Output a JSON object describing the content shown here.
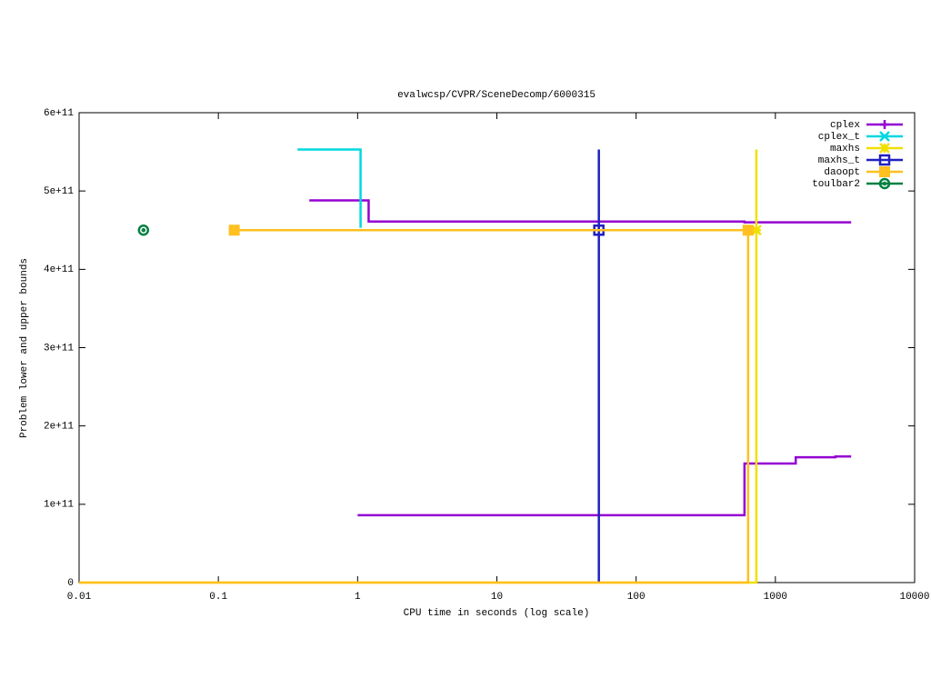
{
  "chart_data": {
    "type": "line",
    "title": "evalwcsp/CVPR/SceneDecomp/6000315",
    "x_label": "CPU time in seconds (log scale)",
    "y_label": "Problem lower and upper bounds",
    "xscale": "log",
    "xlim": [
      0.01,
      10000
    ],
    "xticks": [
      0.01,
      0.1,
      1,
      10,
      100,
      1000,
      10000
    ],
    "ylim": [
      0,
      600000000000
    ],
    "yticks": [
      0,
      {
        "value": 100000000000,
        "label": "1e+11"
      },
      {
        "value": 200000000000,
        "label": "2e+11"
      },
      {
        "value": 300000000000,
        "label": "3e+11"
      },
      {
        "value": 400000000000,
        "label": "4e+11"
      },
      {
        "value": 500000000000,
        "label": "5e+11"
      },
      {
        "value": 600000000000,
        "label": "6e+11"
      }
    ],
    "legend": "top-right",
    "series": [
      {
        "name": "cplex",
        "color": "#9400d3",
        "marker": "plus",
        "x": [
          0.45,
          1.2,
          1.2,
          600,
          600,
          3500,
          null,
          1,
          600,
          600,
          1400,
          1400,
          2700,
          2700,
          3500
        ],
        "values": [
          488000000000,
          488000000000,
          461000000000,
          461000000000,
          460000000000,
          460000000000,
          null,
          86000000000,
          86000000000,
          152000000000,
          152000000000,
          160000000000,
          160000000000,
          161000000000,
          161000000000
        ],
        "point_x": [],
        "point_values": []
      },
      {
        "name": "cplex_t",
        "color": "#00d8e0",
        "marker": "cross",
        "x": [
          0.37,
          1.05,
          1.05
        ],
        "values": [
          553000000000,
          553000000000,
          453000000000
        ],
        "point_x": [],
        "point_values": []
      },
      {
        "name": "maxhs",
        "color": "#f0e000",
        "marker": "star",
        "x": [
          0.01,
          730,
          730
        ],
        "values": [
          0,
          0,
          553000000000
        ],
        "point_x": [
          730
        ],
        "point_values": [
          450000000000
        ]
      },
      {
        "name": "maxhs_t",
        "color": "#2020c0",
        "marker": "square-open",
        "x": [
          54,
          54
        ],
        "values": [
          0,
          553000000000
        ],
        "point_x": [
          54
        ],
        "point_values": [
          450000000000
        ]
      },
      {
        "name": "daoopt",
        "color": "#ffc020",
        "marker": "square",
        "x": [
          0.13,
          637,
          637,
          0.01
        ],
        "values": [
          450000000000,
          450000000000,
          0,
          0
        ],
        "point_x": [
          0.13,
          637
        ],
        "point_values": [
          450000000000,
          450000000000
        ]
      },
      {
        "name": "toulbar2",
        "color": "#008040",
        "marker": "circle",
        "x": [],
        "values": [],
        "point_x": [
          0.029
        ],
        "point_values": [
          450000000000
        ]
      }
    ]
  }
}
